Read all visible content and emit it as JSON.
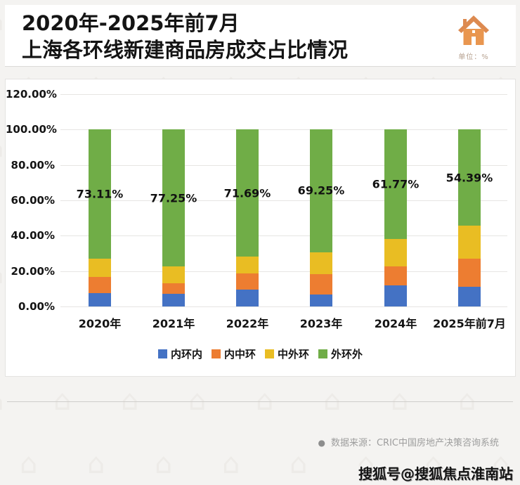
{
  "header": {
    "title_line1": "2020年-2025年前7月",
    "title_line2": "上海各环线新建商品房成交占比情况",
    "unit_label": "单位：%",
    "icon": "house-icon",
    "icon_color": "#E08A4E"
  },
  "chart_data": {
    "type": "bar",
    "stacked": true,
    "title": "2020年-2025年前7月上海各环线新建商品房成交占比情况",
    "unit": "%",
    "categories": [
      "2020年",
      "2021年",
      "2022年",
      "2023年",
      "2024年",
      "2025年前7月"
    ],
    "series": [
      {
        "name": "内环内",
        "color": "#4472C4",
        "values": [
          7.7,
          7.3,
          9.5,
          6.6,
          11.9,
          11.0
        ]
      },
      {
        "name": "内中环",
        "color": "#ED7D31",
        "values": [
          8.8,
          5.9,
          9.0,
          11.5,
          10.85,
          16.1
        ]
      },
      {
        "name": "中外环",
        "color": "#E9BD23",
        "values": [
          10.4,
          9.55,
          9.81,
          12.65,
          15.48,
          18.51
        ]
      },
      {
        "name": "外环外",
        "color": "#70AD47",
        "values": [
          73.11,
          77.25,
          71.69,
          69.25,
          61.77,
          54.39
        ]
      }
    ],
    "data_labels": {
      "series": "外环外",
      "values": [
        "73.11%",
        "77.25%",
        "71.69%",
        "69.25%",
        "61.77%",
        "54.39%"
      ]
    },
    "y_ticks": [
      "120.00%",
      "100.00%",
      "80.00%",
      "60.00%",
      "40.00%",
      "20.00%",
      "0.00%"
    ],
    "ylim": [
      0,
      120
    ],
    "grid": true,
    "legend_position": "bottom"
  },
  "footer": {
    "source_bullet": "●",
    "source": "数据来源：CRIC中国房地产决策咨询系统",
    "watermark": "搜狐号@搜狐焦点淮南站"
  }
}
